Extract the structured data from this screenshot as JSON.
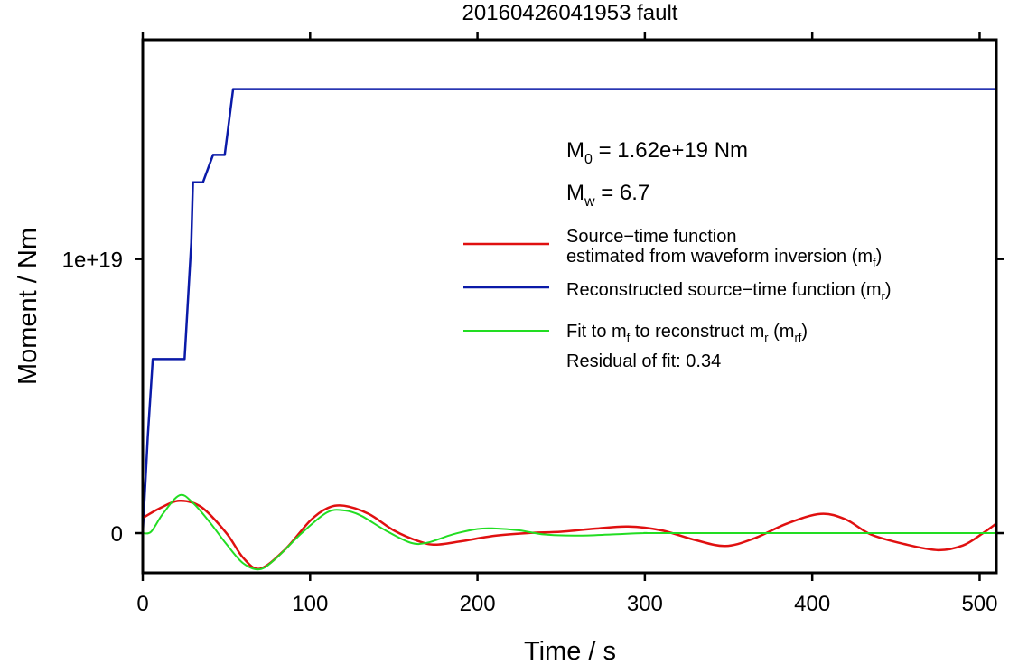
{
  "chart_data": {
    "type": "line",
    "title": "20160426041953 fault",
    "xlabel": "Time / s",
    "ylabel": "Moment / Nm",
    "xlim": [
      0,
      510
    ],
    "ylim": [
      -1.45e+18,
      1.8e+19
    ],
    "x_ticks": [
      0,
      100,
      200,
      300,
      400,
      500
    ],
    "x_tick_labels": [
      "0",
      "100",
      "200",
      "300",
      "400",
      "500"
    ],
    "y_ticks": [
      0,
      1e+19
    ],
    "y_tick_labels": [
      "0",
      "1e+19"
    ],
    "grid": false,
    "annotations": {
      "m0_prefix": "M",
      "m0_sub": "0",
      "m0_value": " = 1.62e+19 Nm",
      "mw_prefix": "M",
      "mw_sub": "w",
      "mw_value": " = 6.7",
      "residual": "Residual of fit: 0.34"
    },
    "legend": {
      "position": "right",
      "entries": [
        {
          "series": "red",
          "line1": "Source−time function",
          "line2_text": "estimated from waveform inversion (m",
          "line2_sub": "f",
          "line2_close": ")"
        },
        {
          "series": "blue",
          "line1_text": "Reconstructed source−time function (m",
          "line1_sub": "r",
          "line1_close": ")"
        },
        {
          "series": "green",
          "a": "Fit to m",
          "a_sub": "f",
          "b": " to reconstruct m",
          "b_sub": "r",
          "c": " (m",
          "c_sub": "rf",
          "d": ")"
        }
      ]
    },
    "series": [
      {
        "key": "blue",
        "color": "#0a1aa8",
        "width": 2.5,
        "interpolate": "linear",
        "x": [
          0,
          3,
          6,
          25,
          29,
          30,
          36,
          42,
          49,
          54,
          510
        ],
        "y": [
          0,
          3.5e+18,
          6.35e+18,
          6.35e+18,
          1.06e+19,
          1.28e+19,
          1.28e+19,
          1.38e+19,
          1.38e+19,
          1.62e+19,
          1.62e+19
        ]
      },
      {
        "key": "red",
        "color": "#e01010",
        "width": 2.5,
        "interpolate": "smooth",
        "x": [
          0,
          10,
          22,
          35,
          50,
          60,
          70,
          85,
          100,
          110,
          120,
          135,
          150,
          165,
          175,
          190,
          210,
          230,
          250,
          270,
          290,
          310,
          330,
          348,
          365,
          385,
          405,
          420,
          435,
          455,
          475,
          490,
          502,
          510
        ],
        "y": [
          5.5e+17,
          9e+17,
          1.18e+18,
          9.5e+17,
          0,
          -9e+17,
          -1.3e+18,
          -6e+17,
          4.5e+17,
          9e+17,
          1e+18,
          7e+17,
          1e+17,
          -3e+17,
          -4.2e+17,
          -3e+17,
          -1e+17,
          0,
          5e+16,
          1.6e+17,
          2.4e+17,
          1e+17,
          -2.5e+17,
          -4.7e+17,
          -2e+17,
          3.5e+17,
          7e+17,
          5e+17,
          -5e+16,
          -4e+17,
          -6.2e+17,
          -4.5e+17,
          0,
          3.5e+17
        ]
      },
      {
        "key": "green",
        "color": "#22dd22",
        "width": 2,
        "interpolate": "smooth",
        "x": [
          0,
          5,
          12,
          22,
          30,
          40,
          50,
          60,
          70,
          80,
          95,
          110,
          120,
          130,
          145,
          160,
          170,
          185,
          200,
          210,
          225,
          240,
          260,
          280,
          300,
          320,
          510
        ],
        "y": [
          0,
          5e+16,
          7e+17,
          1.38e+18,
          1.1e+18,
          4e+17,
          -4e+17,
          -1.1e+18,
          -1.32e+18,
          -9e+17,
          0,
          7.5e+17,
          8.3e+17,
          6.5e+17,
          1e+17,
          -3.5e+17,
          -3.5e+17,
          -5e+16,
          1.5e+17,
          1.7e+17,
          1e+17,
          -5e+16,
          -9e+16,
          -5e+16,
          0,
          0,
          0
        ]
      }
    ]
  }
}
